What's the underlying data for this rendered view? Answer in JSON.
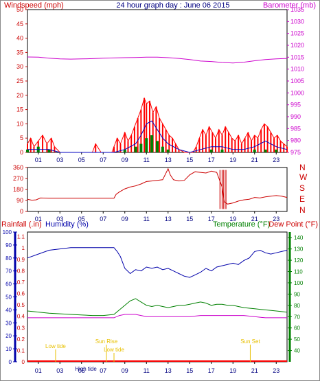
{
  "header": {
    "left_label": "Windspeed (mph)",
    "center_title": "24 hour graph day : June 06 2015",
    "right_label": "Barometer (mb)"
  },
  "bottom_header": {
    "rainfall_label": "Rainfall (.in)",
    "humidity_label": "Humidity (%)",
    "temperature_label": "Temperature (°F)",
    "dewpoint_label": "Dew Point (°F)"
  },
  "colors": {
    "wind": "#ff0000",
    "wind_avg": "#0000c0",
    "wind_green": "#008000",
    "barometer": "#cc00cc",
    "direction": "#cc0000",
    "humidity": "#0000aa",
    "temperature": "#008000",
    "dewpoint": "#cc00cc",
    "rain": "#ff0000",
    "tide_sun": "#e8c000"
  },
  "chart_data": [
    {
      "type": "line",
      "panel": "wind-barometer",
      "title": "24 hour graph day : June 06 2015",
      "ylabel": "Windspeed (mph)",
      "y2label": "Barometer (mb)",
      "ylim": [
        0,
        50
      ],
      "y2lim": [
        975,
        1035
      ],
      "yticks": [
        0,
        5,
        10,
        15,
        20,
        25,
        30,
        35,
        40,
        45,
        50
      ],
      "y2ticks": [
        975,
        980,
        985,
        990,
        995,
        1000,
        1005,
        1010,
        1015,
        1020,
        1025,
        1030,
        1035
      ],
      "xticks": [
        "01",
        "03",
        "05",
        "07",
        "09",
        "11",
        "13",
        "15",
        "17",
        "19",
        "21",
        "23"
      ],
      "xlim": [
        0,
        24
      ],
      "series": [
        {
          "name": "Barometer",
          "x": [
            0,
            1,
            2,
            3,
            4,
            5,
            6,
            7,
            8,
            9,
            10,
            11,
            12,
            13,
            14,
            15,
            16,
            17,
            18,
            19,
            20,
            21,
            22,
            23,
            24
          ],
          "values": [
            1015.1,
            1015.0,
            1014.6,
            1014.3,
            1014.2,
            1014.3,
            1014.4,
            1014.6,
            1014.7,
            1014.8,
            1014.9,
            1015.0,
            1015.0,
            1014.8,
            1014.5,
            1014.0,
            1013.4,
            1013.2,
            1012.8,
            1012.6,
            1012.9,
            1013.5,
            1014.0,
            1014.3,
            1014.5
          ]
        },
        {
          "name": "Wind gust",
          "x": [
            0,
            0.3,
            0.6,
            1,
            1.4,
            1.8,
            2.2,
            2.5,
            3,
            5,
            6,
            6.3,
            6.8,
            7,
            7.4,
            7.8,
            8,
            8.3,
            8.6,
            9,
            9.3,
            9.6,
            9.9,
            10.2,
            10.5,
            10.8,
            11,
            11.3,
            11.6,
            11.9,
            12.2,
            12.5,
            12.8,
            13.1,
            13.4,
            13.7,
            14,
            14.5,
            15,
            15.3,
            15.6,
            15.9,
            16.2,
            16.5,
            16.8,
            17.1,
            17.4,
            17.7,
            18,
            18.3,
            18.6,
            18.9,
            19.2,
            19.5,
            19.8,
            20.1,
            20.4,
            20.7,
            21,
            21.3,
            21.6,
            21.9,
            22.2,
            22.5,
            22.8,
            23.1,
            23.4,
            23.7,
            24
          ],
          "values": [
            3,
            5,
            2,
            4,
            6,
            3,
            5,
            2,
            0,
            0,
            0,
            3,
            0,
            0,
            0,
            0,
            2,
            5,
            3,
            7,
            4,
            6,
            9,
            12,
            15,
            19,
            17,
            18,
            14,
            16,
            12,
            10,
            8,
            6,
            5,
            3,
            1,
            0,
            0,
            0,
            2,
            5,
            8,
            6,
            9,
            7,
            5,
            8,
            6,
            9,
            7,
            5,
            4,
            6,
            3,
            5,
            7,
            4,
            6,
            5,
            8,
            10,
            9,
            7,
            5,
            6,
            4,
            3,
            2
          ]
        },
        {
          "name": "Wind average",
          "x": [
            0,
            1,
            2,
            3,
            8,
            9,
            10,
            10.5,
            11,
            11.5,
            12,
            12.5,
            13,
            14,
            15,
            16,
            17,
            18,
            19,
            20,
            21,
            22,
            23,
            24
          ],
          "values": [
            1,
            1,
            1,
            0,
            0,
            1,
            3,
            6,
            10,
            11,
            8,
            5,
            3,
            1,
            0,
            1,
            2,
            2,
            1,
            1,
            2,
            4,
            2,
            1
          ]
        },
        {
          "name": "Wind",
          "x": [
            0,
            1,
            2,
            3,
            8,
            9,
            10,
            10.5,
            11,
            11.5,
            12,
            12.5,
            13,
            14,
            15,
            16,
            17,
            18,
            19,
            20,
            21,
            22,
            23,
            24
          ],
          "values": [
            1,
            2,
            1,
            0,
            0,
            1,
            2,
            3,
            5,
            6,
            4,
            2,
            1,
            0,
            0,
            0,
            1,
            1,
            0,
            0,
            1,
            1,
            1,
            0
          ]
        }
      ]
    },
    {
      "type": "line",
      "panel": "wind-direction",
      "ylim": [
        0,
        360
      ],
      "yticks": [
        0,
        90,
        180,
        270,
        360
      ],
      "y2ticks": [
        "N",
        "W",
        "S",
        "E",
        "N"
      ],
      "xticks": [
        "01",
        "03",
        "05",
        "07",
        "09",
        "11",
        "13",
        "15",
        "17",
        "19",
        "21",
        "23"
      ],
      "xlim": [
        0,
        24
      ],
      "series": [
        {
          "name": "Wind direction",
          "x": [
            0,
            0.4,
            0.8,
            1.2,
            2,
            4,
            6,
            7,
            8,
            8.2,
            8.5,
            9,
            9.5,
            10,
            10.5,
            11,
            11.5,
            12,
            12.5,
            13,
            13.2,
            13.5,
            14,
            14.5,
            15,
            15.5,
            16,
            16.5,
            17,
            17.5,
            18,
            18.2,
            18.5,
            19,
            19.5,
            20,
            20.5,
            21,
            21.5,
            22,
            22.5,
            23,
            23.5,
            24
          ],
          "values": [
            100,
            92,
            95,
            110,
            108,
            108,
            108,
            108,
            108,
            140,
            160,
            185,
            200,
            210,
            225,
            245,
            250,
            255,
            260,
            350,
            300,
            260,
            250,
            255,
            300,
            325,
            320,
            315,
            330,
            320,
            200,
            80,
            60,
            70,
            85,
            95,
            100,
            115,
            110,
            120,
            125,
            130,
            125,
            115
          ]
        }
      ]
    },
    {
      "type": "line",
      "panel": "humidity-temperature-rain",
      "ylabel": "Humidity (%)",
      "y2label": "Temperature (°F)",
      "ylim": [
        0,
        100
      ],
      "y2lim": [
        30,
        145
      ],
      "yticks": [
        0,
        10,
        20,
        30,
        40,
        50,
        60,
        70,
        80,
        90,
        100
      ],
      "y2ticks": [
        40,
        50,
        60,
        70,
        80,
        90,
        100,
        110,
        120,
        130,
        140
      ],
      "rain_ticks": [
        "0",
        "0.1",
        "0.2",
        "0.3",
        "0.4",
        "0.5",
        "0.6",
        "0.7",
        "0.8",
        "0.9",
        "1",
        "1.1"
      ],
      "xticks": [
        "01",
        "03",
        "05",
        "07",
        "09",
        "11",
        "13",
        "15",
        "17",
        "19",
        "21",
        "23"
      ],
      "xlim": [
        0,
        24
      ],
      "series": [
        {
          "name": "Humidity",
          "x": [
            0,
            1,
            2,
            3,
            4,
            5,
            6,
            7,
            8,
            8.3,
            8.6,
            9,
            9.5,
            10,
            10.5,
            11,
            11.5,
            12,
            12.5,
            13,
            13.5,
            14,
            14.5,
            15,
            15.5,
            16,
            16.5,
            17,
            17.5,
            18,
            18.5,
            19,
            19.5,
            20,
            20.5,
            21,
            21.5,
            22,
            22.5,
            23,
            23.5,
            24
          ],
          "values": [
            80,
            83,
            86,
            87,
            88,
            88,
            88,
            88,
            88,
            85,
            81,
            72,
            68,
            71,
            70,
            73,
            72,
            73,
            71,
            72,
            70,
            68,
            66,
            65,
            67,
            69,
            72,
            70,
            73,
            74,
            75,
            76,
            75,
            78,
            80,
            85,
            86,
            84,
            83,
            84,
            85,
            86
          ]
        },
        {
          "name": "Temperature",
          "x": [
            0,
            2,
            4,
            6,
            7,
            8,
            8.5,
            9,
            9.5,
            10,
            10.5,
            11,
            11.5,
            12,
            12.5,
            13,
            13.5,
            14,
            14.5,
            15,
            15.5,
            16,
            16.5,
            17,
            17.5,
            18,
            18.5,
            19,
            19.5,
            20,
            21,
            22,
            23,
            24
          ],
          "values": [
            75,
            73,
            72,
            71,
            71,
            72,
            76,
            80,
            84,
            86,
            83,
            80,
            79,
            80,
            79,
            78,
            79,
            80,
            80,
            81,
            82,
            83,
            82,
            80,
            81,
            81,
            80,
            80,
            79,
            78,
            77,
            76,
            75,
            74
          ]
        },
        {
          "name": "Dew Point",
          "x": [
            0,
            2,
            4,
            6,
            7,
            8,
            8.5,
            9,
            9.5,
            10,
            10.5,
            11,
            11.5,
            12,
            13,
            14,
            15,
            16,
            17,
            18,
            19,
            20,
            21,
            22,
            23,
            24
          ],
          "values": [
            69,
            69,
            69,
            69,
            69,
            69,
            71,
            72,
            72,
            72,
            71,
            70,
            70,
            70,
            70,
            70,
            70,
            71,
            71,
            71,
            71,
            71,
            70,
            69,
            69,
            69
          ]
        }
      ],
      "annotations": [
        {
          "text": "Sun Rise",
          "x": 7.3
        },
        {
          "text": "Sun Set",
          "x": 20.6
        },
        {
          "text": "Low tide",
          "x": 8.0
        },
        {
          "text": "Low tide",
          "x": 2.6
        },
        {
          "text": "High tide",
          "x": 5.4
        }
      ]
    }
  ]
}
